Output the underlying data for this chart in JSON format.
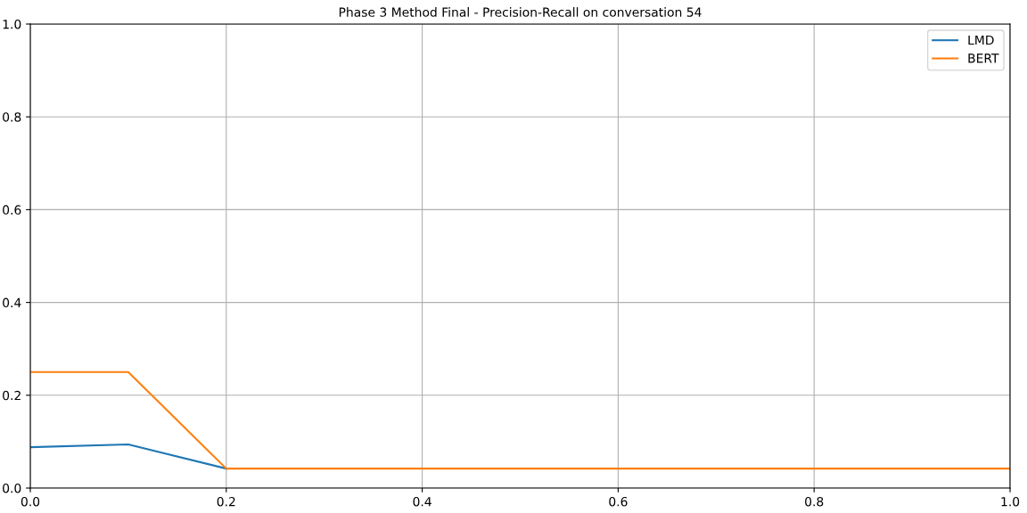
{
  "chart_data": {
    "type": "line",
    "title": "Phase 3 Method Final - Precision-Recall on conversation 54",
    "x": [
      0,
      0.1,
      0.2,
      0.3,
      0.4,
      0.5,
      0.6,
      0.7,
      0.8,
      0.9,
      1.0
    ],
    "series": [
      {
        "name": "LMD",
        "color": "#1f77b4",
        "values": [
          0.088,
          0.094,
          0.042,
          null,
          null,
          null,
          null,
          null,
          null,
          null,
          null
        ]
      },
      {
        "name": "BERT",
        "color": "#ff7f0e",
        "values": [
          0.25,
          0.25,
          0.042,
          0.042,
          0.042,
          0.042,
          0.042,
          0.042,
          0.042,
          0.042,
          0.042
        ]
      }
    ],
    "xlim": [
      0,
      1
    ],
    "ylim": [
      0,
      1
    ],
    "xticks": [
      {
        "value": 0,
        "label": "0.0"
      },
      0.2,
      0.4,
      0.6,
      0.8,
      {
        "value": 1,
        "label": "1.0"
      }
    ],
    "yticks": [
      {
        "value": 0,
        "label": "0.0"
      },
      0.2,
      0.4,
      0.6,
      0.8,
      {
        "value": 1,
        "label": "1.0"
      }
    ],
    "grid": true,
    "legend": "top right",
    "marker": "none",
    "line_style": "solid"
  }
}
